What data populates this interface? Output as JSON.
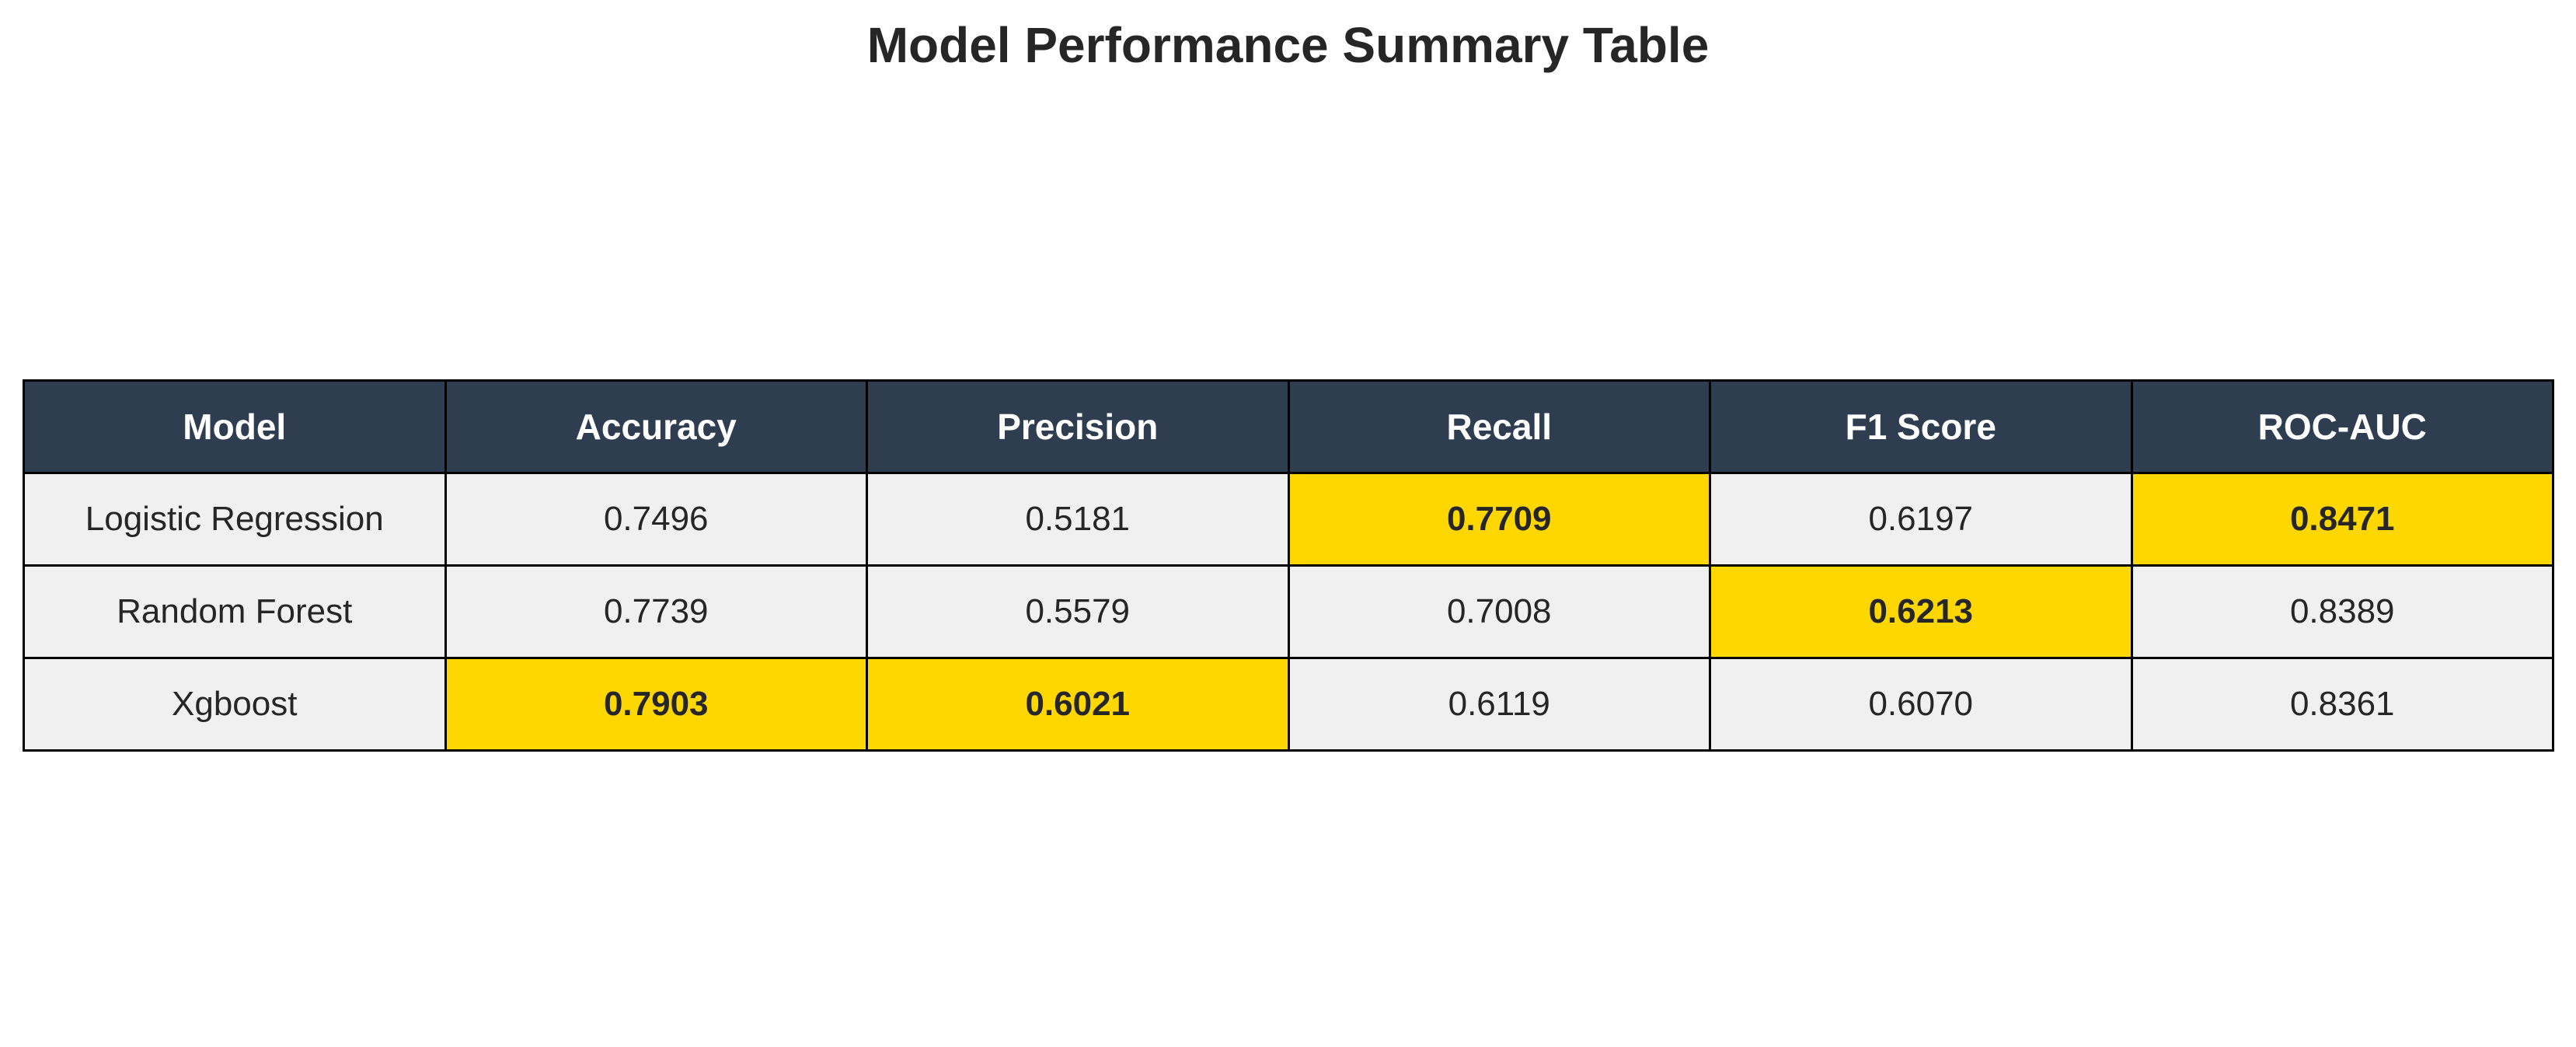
{
  "chart_data": {
    "type": "table",
    "title": "Model Performance Summary Table",
    "columns": [
      "Model",
      "Accuracy",
      "Precision",
      "Recall",
      "F1 Score",
      "ROC-AUC"
    ],
    "rows": [
      {
        "model": "Logistic Regression",
        "values": [
          "0.7496",
          "0.5181",
          "0.7709",
          "0.6197",
          "0.8471"
        ],
        "best": [
          false,
          false,
          true,
          false,
          true
        ]
      },
      {
        "model": "Random Forest",
        "values": [
          "0.7739",
          "0.5579",
          "0.7008",
          "0.6213",
          "0.8389"
        ],
        "best": [
          false,
          false,
          false,
          true,
          false
        ]
      },
      {
        "model": "Xgboost",
        "values": [
          "0.7903",
          "0.6021",
          "0.6119",
          "0.6070",
          "0.8361"
        ],
        "best": [
          true,
          true,
          false,
          false,
          false
        ]
      }
    ],
    "colors": {
      "header_bg": "#2e3e50",
      "header_text": "#ffffff",
      "cell_bg": "#f0f0f0",
      "highlight_bg": "#ffd700",
      "border": "#000000"
    }
  }
}
